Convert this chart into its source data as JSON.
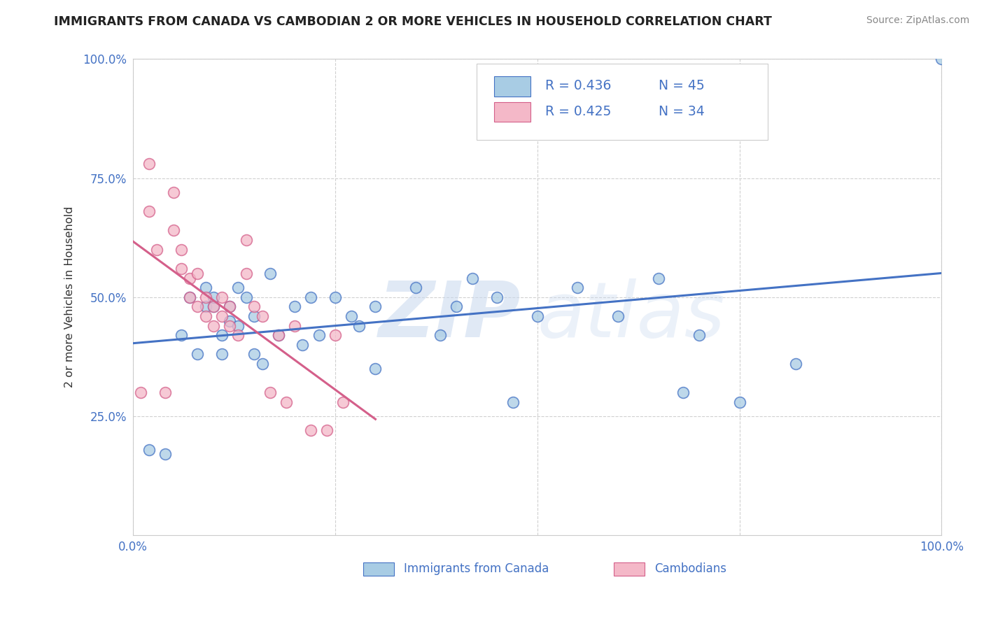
{
  "title": "IMMIGRANTS FROM CANADA VS CAMBODIAN 2 OR MORE VEHICLES IN HOUSEHOLD CORRELATION CHART",
  "source": "Source: ZipAtlas.com",
  "ylabel": "2 or more Vehicles in Household",
  "R1": 0.436,
  "N1": 45,
  "R2": 0.425,
  "N2": 34,
  "color_blue": "#a8cce4",
  "color_pink": "#f4b8c8",
  "line_blue": "#4472c4",
  "line_pink": "#d45f8a",
  "legend_label1": "Immigrants from Canada",
  "legend_label2": "Cambodians",
  "blue_x": [
    0.02,
    0.04,
    0.06,
    0.07,
    0.08,
    0.09,
    0.09,
    0.1,
    0.1,
    0.11,
    0.11,
    0.12,
    0.12,
    0.13,
    0.13,
    0.14,
    0.15,
    0.15,
    0.16,
    0.17,
    0.18,
    0.2,
    0.21,
    0.22,
    0.23,
    0.25,
    0.27,
    0.28,
    0.3,
    0.3,
    0.35,
    0.38,
    0.4,
    0.42,
    0.45,
    0.47,
    0.5,
    0.55,
    0.6,
    0.65,
    0.68,
    0.7,
    0.75,
    0.82,
    1.0
  ],
  "blue_y": [
    0.18,
    0.17,
    0.42,
    0.5,
    0.38,
    0.48,
    0.52,
    0.48,
    0.5,
    0.38,
    0.42,
    0.45,
    0.48,
    0.44,
    0.52,
    0.5,
    0.46,
    0.38,
    0.36,
    0.55,
    0.42,
    0.48,
    0.4,
    0.5,
    0.42,
    0.5,
    0.46,
    0.44,
    0.48,
    0.35,
    0.52,
    0.42,
    0.48,
    0.54,
    0.5,
    0.28,
    0.46,
    0.52,
    0.46,
    0.54,
    0.3,
    0.42,
    0.28,
    0.36,
    1.0
  ],
  "pink_x": [
    0.01,
    0.02,
    0.02,
    0.03,
    0.04,
    0.05,
    0.05,
    0.06,
    0.06,
    0.07,
    0.07,
    0.08,
    0.08,
    0.09,
    0.09,
    0.1,
    0.1,
    0.11,
    0.11,
    0.12,
    0.12,
    0.13,
    0.14,
    0.14,
    0.15,
    0.16,
    0.17,
    0.18,
    0.19,
    0.2,
    0.22,
    0.24,
    0.25,
    0.26
  ],
  "pink_y": [
    0.3,
    0.78,
    0.68,
    0.6,
    0.3,
    0.72,
    0.64,
    0.6,
    0.56,
    0.5,
    0.54,
    0.48,
    0.55,
    0.5,
    0.46,
    0.48,
    0.44,
    0.5,
    0.46,
    0.44,
    0.48,
    0.42,
    0.55,
    0.62,
    0.48,
    0.46,
    0.3,
    0.42,
    0.28,
    0.44,
    0.22,
    0.22,
    0.42,
    0.28
  ]
}
